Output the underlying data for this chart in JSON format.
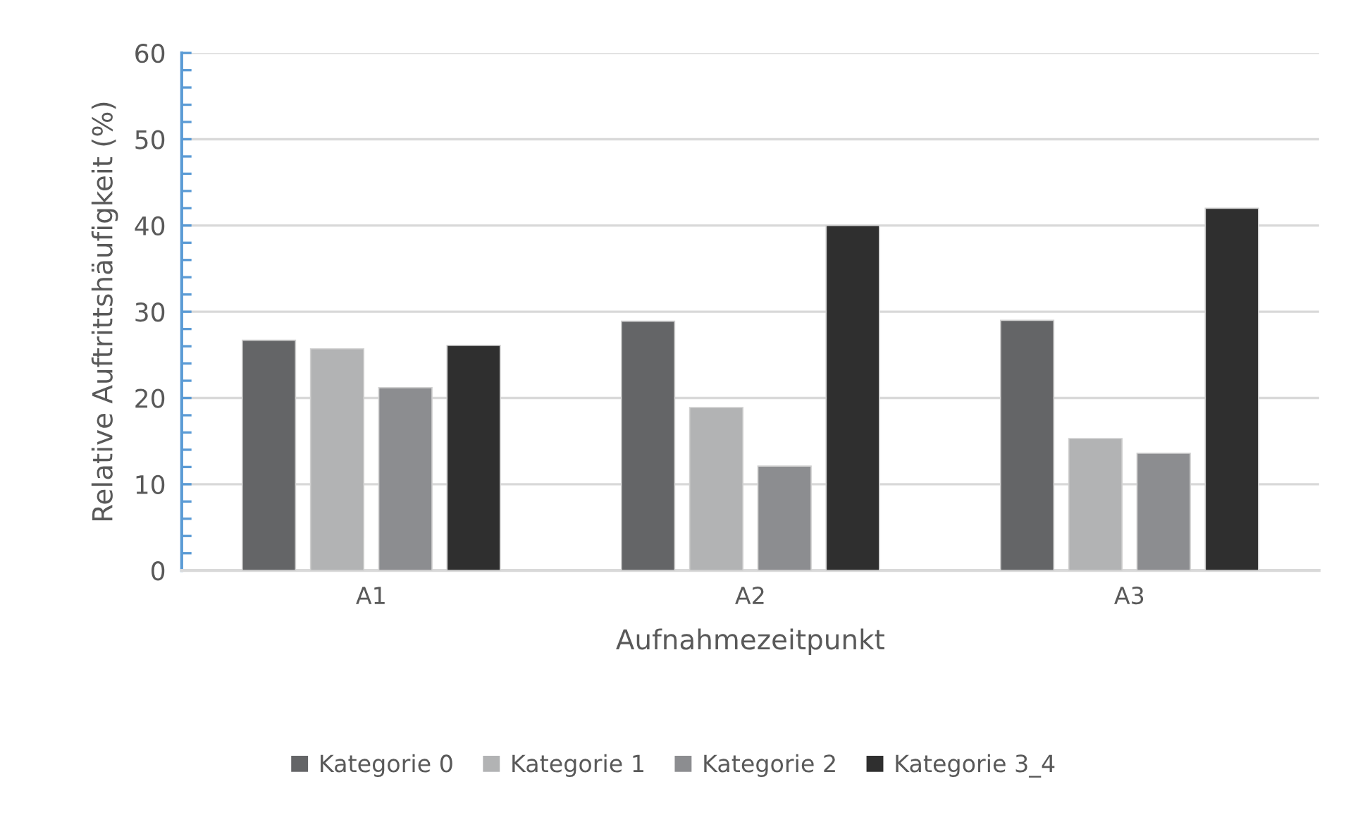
{
  "chart_data": {
    "type": "bar",
    "xlabel": "Aufnahmezeitpunkt",
    "ylabel": "Relative Auftrittshäufigkeit (%)",
    "categories": [
      "A1",
      "A2",
      "A3"
    ],
    "series": [
      {
        "name": "Kategorie 0",
        "color": "#646567",
        "values": [
          26.7,
          28.9,
          29.0
        ]
      },
      {
        "name": "Kategorie 1",
        "color": "#b2b3b4",
        "values": [
          25.7,
          18.9,
          15.3
        ]
      },
      {
        "name": "Kategorie 2",
        "color": "#8c8d90",
        "values": [
          21.2,
          12.1,
          13.6
        ]
      },
      {
        "name": "Kategorie 3_4",
        "color": "#2f2f2f",
        "values": [
          26.1,
          40.0,
          42.0
        ]
      }
    ],
    "ylim": [
      0,
      60
    ],
    "yticks": [
      0,
      10,
      20,
      30,
      40,
      50,
      60
    ],
    "grid": "y",
    "legend": "bottom"
  }
}
